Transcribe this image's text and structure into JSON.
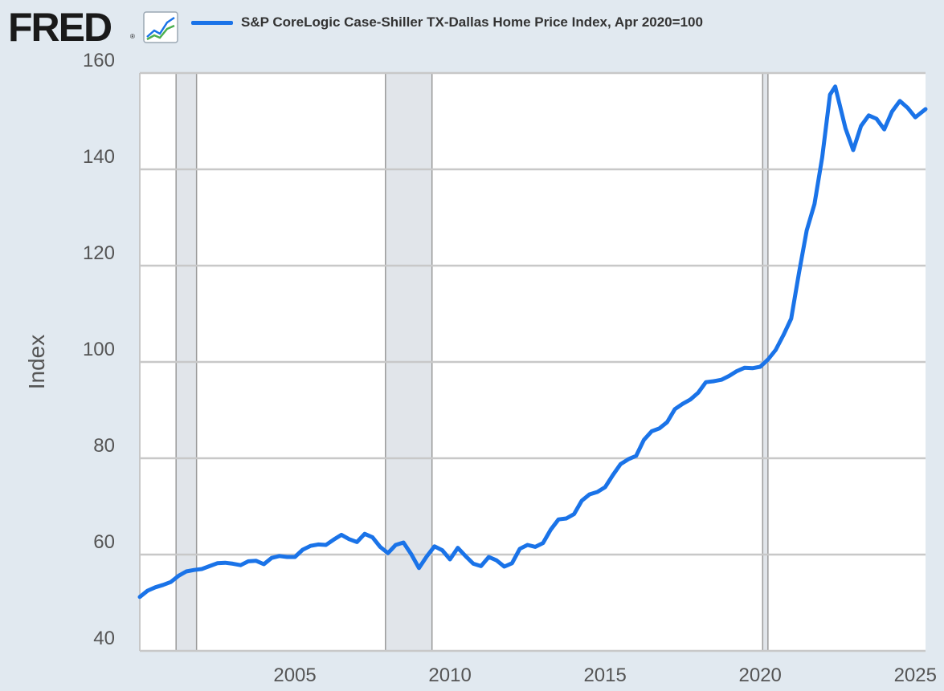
{
  "header": {
    "logo_text": "FRED",
    "logo_reg": "®",
    "logo_icon": "line-chart-icon",
    "legend_label": "S&P CoreLogic Case-Shiller TX-Dallas Home Price Index, Apr 2020=100"
  },
  "chart_data": {
    "type": "line",
    "title": "S&P CoreLogic Case-Shiller TX-Dallas Home Price Index, Apr 2020=100",
    "xlabel": "",
    "ylabel": "Index",
    "xlim": [
      2000.0,
      2025.33
    ],
    "ylim": [
      40,
      160
    ],
    "x_ticks": [
      "2005",
      "2010",
      "2015",
      "2020",
      "2025"
    ],
    "x_tick_values": [
      2005,
      2010,
      2015,
      2020,
      2025
    ],
    "y_ticks": [
      "40",
      "60",
      "80",
      "100",
      "120",
      "140",
      "160"
    ],
    "y_tick_values": [
      40,
      60,
      80,
      100,
      120,
      140,
      160
    ],
    "grid": true,
    "line_color": "#1a73e8",
    "recession_color": "#e1e5ea",
    "recessions": [
      {
        "start": 2001.17,
        "end": 2001.83
      },
      {
        "start": 2007.92,
        "end": 2009.42
      },
      {
        "start": 2020.08,
        "end": 2020.25
      }
    ],
    "series": [
      {
        "name": "S&P CoreLogic Case-Shiller TX-Dallas Home Price Index, Apr 2020=100",
        "x": [
          2000.0,
          2000.25,
          2000.5,
          2000.75,
          2001.0,
          2001.25,
          2001.5,
          2001.75,
          2002.0,
          2002.25,
          2002.5,
          2002.75,
          2003.0,
          2003.25,
          2003.5,
          2003.75,
          2004.0,
          2004.25,
          2004.5,
          2004.75,
          2005.0,
          2005.25,
          2005.5,
          2005.75,
          2006.0,
          2006.25,
          2006.5,
          2006.75,
          2007.0,
          2007.25,
          2007.5,
          2007.75,
          2008.0,
          2008.25,
          2008.5,
          2008.75,
          2009.0,
          2009.25,
          2009.5,
          2009.75,
          2010.0,
          2010.25,
          2010.5,
          2010.75,
          2011.0,
          2011.25,
          2011.5,
          2011.75,
          2012.0,
          2012.25,
          2012.5,
          2012.75,
          2013.0,
          2013.25,
          2013.5,
          2013.75,
          2014.0,
          2014.25,
          2014.5,
          2014.75,
          2015.0,
          2015.25,
          2015.5,
          2015.75,
          2016.0,
          2016.25,
          2016.5,
          2016.75,
          2017.0,
          2017.25,
          2017.5,
          2017.75,
          2018.0,
          2018.25,
          2018.5,
          2018.75,
          2019.0,
          2019.25,
          2019.5,
          2019.75,
          2020.0,
          2020.25,
          2020.5,
          2020.75,
          2021.0,
          2021.25,
          2021.5,
          2021.75,
          2022.0,
          2022.25,
          2022.42,
          2022.75,
          2023.0,
          2023.25,
          2023.5,
          2023.75,
          2024.0,
          2024.25,
          2024.5,
          2024.75,
          2025.0,
          2025.33
        ],
        "values": [
          51.2,
          52.5,
          53.2,
          53.7,
          54.3,
          55.6,
          56.5,
          56.8,
          57.0,
          57.6,
          58.2,
          58.3,
          58.1,
          57.8,
          58.6,
          58.7,
          58.0,
          59.3,
          59.7,
          59.5,
          59.5,
          61.0,
          61.8,
          62.1,
          62.0,
          63.1,
          64.1,
          63.2,
          62.6,
          64.3,
          63.6,
          61.6,
          60.3,
          62.0,
          62.5,
          60.1,
          57.2,
          59.6,
          61.7,
          60.9,
          59.0,
          61.4,
          59.7,
          58.1,
          57.6,
          59.5,
          58.8,
          57.5,
          58.2,
          61.2,
          62.0,
          61.6,
          62.4,
          65.2,
          67.3,
          67.5,
          68.4,
          71.2,
          72.5,
          73.0,
          74.0,
          76.5,
          78.8,
          79.8,
          80.5,
          83.8,
          85.6,
          86.2,
          87.5,
          90.2,
          91.3,
          92.2,
          93.6,
          95.8,
          96.0,
          96.3,
          97.1,
          98.1,
          98.8,
          98.7,
          99.0,
          100.5,
          102.5,
          105.6,
          109.0,
          118.5,
          127.3,
          132.8,
          142.5,
          155.5,
          157.2,
          148.5,
          144.0,
          149.0,
          151.2,
          150.5,
          148.3,
          152.0,
          154.2,
          152.8,
          150.8,
          152.5
        ]
      }
    ]
  }
}
